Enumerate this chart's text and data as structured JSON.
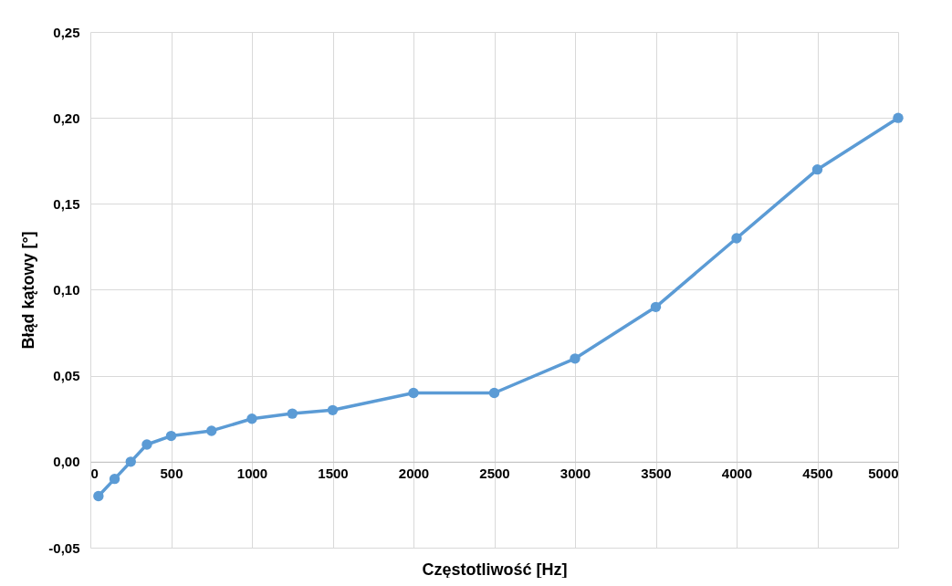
{
  "chart_data": {
    "type": "line",
    "xlabel": "Częstotliwość [Hz]",
    "ylabel": "Błąd kątowy [°]",
    "x": [
      50,
      150,
      250,
      350,
      500,
      750,
      1000,
      1250,
      1500,
      2000,
      2500,
      3000,
      3500,
      4000,
      4500,
      5000
    ],
    "series": [
      {
        "color": "#5b9bd5",
        "values": [
          -0.02,
          -0.01,
          0,
          0.01,
          0.015,
          0.018,
          0.025,
          0.028,
          0.03,
          0.04,
          0.04,
          0.06,
          0.09,
          0.13,
          0.17,
          0.2
        ]
      }
    ],
    "xlim": [
      0,
      5000
    ],
    "xticks": [
      0,
      500,
      1000,
      1500,
      2000,
      2500,
      3000,
      3500,
      4000,
      4500,
      5000
    ],
    "ylim": [
      -0.05,
      0.25
    ],
    "yticks": [
      {
        "value": -0.05,
        "label": "-0,05"
      },
      {
        "value": 0,
        "label": "0,00"
      },
      {
        "value": 0.05,
        "label": "0,05"
      },
      {
        "value": 0.1,
        "label": "0,10"
      },
      {
        "value": 0.15,
        "label": "0,15"
      },
      {
        "value": 0.2,
        "label": "0,20"
      },
      {
        "value": 0.25,
        "label": "0,25"
      }
    ],
    "grid": true,
    "marker": "circle",
    "line_style": "solid"
  }
}
